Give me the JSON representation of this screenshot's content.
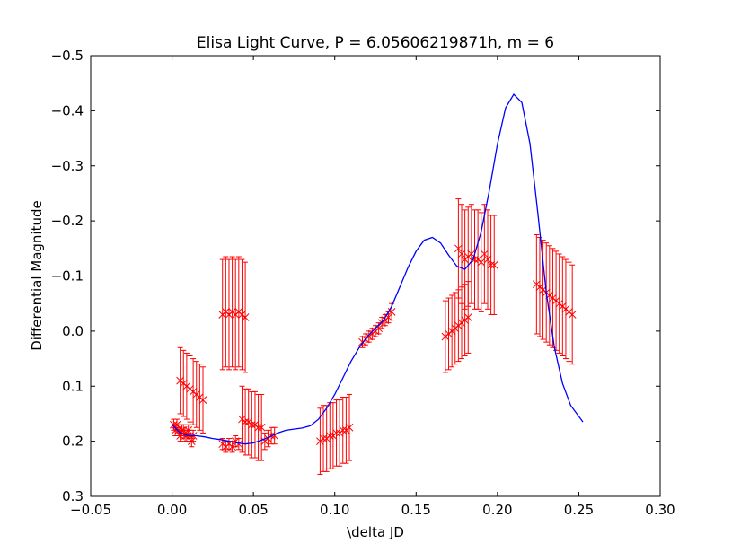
{
  "chart_data": {
    "type": "scatter",
    "title": "Elisa Light Curve,  P = 6.05606219871h, m = 6",
    "xlabel": "\\delta JD",
    "ylabel": "Differential Magnitude",
    "xlim": [
      -0.05,
      0.3
    ],
    "ylim": [
      0.3,
      -0.5
    ],
    "y_inverted": true,
    "grid": false,
    "x_ticks": [
      -0.05,
      0.0,
      0.05,
      0.1,
      0.15,
      0.2,
      0.25,
      0.3
    ],
    "x_tick_labels": [
      "−0.05",
      "0.00",
      "0.05",
      "0.10",
      "0.15",
      "0.20",
      "0.25",
      "0.30"
    ],
    "y_ticks": [
      -0.5,
      -0.4,
      -0.3,
      -0.2,
      -0.1,
      0.0,
      0.1,
      0.2,
      0.3
    ],
    "y_tick_labels": [
      "−0.5",
      "−0.4",
      "−0.3",
      "−0.2",
      "−0.1",
      "0.0",
      "0.1",
      "0.2",
      "0.3"
    ],
    "colors": {
      "data": "#ff0000",
      "fit": "#0000ff"
    },
    "series": [
      {
        "kind": "errorbar",
        "marker": "x",
        "points": [
          {
            "x": 0.001,
            "y": 0.17,
            "err": 0.01
          },
          {
            "x": 0.002,
            "y": 0.18,
            "err": 0.01
          },
          {
            "x": 0.003,
            "y": 0.17,
            "err": 0.01
          },
          {
            "x": 0.004,
            "y": 0.18,
            "err": 0.01
          },
          {
            "x": 0.005,
            "y": 0.19,
            "err": 0.01
          },
          {
            "x": 0.006,
            "y": 0.18,
            "err": 0.01
          },
          {
            "x": 0.007,
            "y": 0.18,
            "err": 0.01
          },
          {
            "x": 0.008,
            "y": 0.19,
            "err": 0.01
          },
          {
            "x": 0.009,
            "y": 0.19,
            "err": 0.01
          },
          {
            "x": 0.01,
            "y": 0.18,
            "err": 0.01
          },
          {
            "x": 0.011,
            "y": 0.19,
            "err": 0.01
          },
          {
            "x": 0.012,
            "y": 0.2,
            "err": 0.01
          },
          {
            "x": 0.013,
            "y": 0.19,
            "err": 0.01
          },
          {
            "x": 0.005,
            "y": 0.09,
            "err": 0.06
          },
          {
            "x": 0.007,
            "y": 0.095,
            "err": 0.06
          },
          {
            "x": 0.009,
            "y": 0.1,
            "err": 0.06
          },
          {
            "x": 0.011,
            "y": 0.105,
            "err": 0.06
          },
          {
            "x": 0.013,
            "y": 0.11,
            "err": 0.06
          },
          {
            "x": 0.015,
            "y": 0.115,
            "err": 0.06
          },
          {
            "x": 0.017,
            "y": 0.12,
            "err": 0.06
          },
          {
            "x": 0.019,
            "y": 0.125,
            "err": 0.06
          },
          {
            "x": 0.031,
            "y": -0.03,
            "err": 0.1
          },
          {
            "x": 0.033,
            "y": -0.035,
            "err": 0.1
          },
          {
            "x": 0.035,
            "y": -0.03,
            "err": 0.1
          },
          {
            "x": 0.037,
            "y": -0.035,
            "err": 0.1
          },
          {
            "x": 0.039,
            "y": -0.03,
            "err": 0.1
          },
          {
            "x": 0.041,
            "y": -0.035,
            "err": 0.1
          },
          {
            "x": 0.043,
            "y": -0.03,
            "err": 0.1
          },
          {
            "x": 0.045,
            "y": -0.025,
            "err": 0.1
          },
          {
            "x": 0.031,
            "y": 0.205,
            "err": 0.01
          },
          {
            "x": 0.033,
            "y": 0.21,
            "err": 0.01
          },
          {
            "x": 0.035,
            "y": 0.205,
            "err": 0.01
          },
          {
            "x": 0.037,
            "y": 0.21,
            "err": 0.01
          },
          {
            "x": 0.039,
            "y": 0.2,
            "err": 0.01
          },
          {
            "x": 0.041,
            "y": 0.205,
            "err": 0.01
          },
          {
            "x": 0.043,
            "y": 0.16,
            "err": 0.06
          },
          {
            "x": 0.045,
            "y": 0.165,
            "err": 0.06
          },
          {
            "x": 0.047,
            "y": 0.165,
            "err": 0.06
          },
          {
            "x": 0.049,
            "y": 0.17,
            "err": 0.06
          },
          {
            "x": 0.051,
            "y": 0.17,
            "err": 0.06
          },
          {
            "x": 0.053,
            "y": 0.175,
            "err": 0.06
          },
          {
            "x": 0.055,
            "y": 0.175,
            "err": 0.06
          },
          {
            "x": 0.057,
            "y": 0.2,
            "err": 0.015
          },
          {
            "x": 0.059,
            "y": 0.195,
            "err": 0.015
          },
          {
            "x": 0.061,
            "y": 0.19,
            "err": 0.015
          },
          {
            "x": 0.063,
            "y": 0.19,
            "err": 0.015
          },
          {
            "x": 0.091,
            "y": 0.2,
            "err": 0.06
          },
          {
            "x": 0.093,
            "y": 0.195,
            "err": 0.06
          },
          {
            "x": 0.095,
            "y": 0.195,
            "err": 0.06
          },
          {
            "x": 0.097,
            "y": 0.19,
            "err": 0.06
          },
          {
            "x": 0.099,
            "y": 0.19,
            "err": 0.06
          },
          {
            "x": 0.101,
            "y": 0.185,
            "err": 0.06
          },
          {
            "x": 0.103,
            "y": 0.185,
            "err": 0.06
          },
          {
            "x": 0.105,
            "y": 0.18,
            "err": 0.06
          },
          {
            "x": 0.107,
            "y": 0.18,
            "err": 0.06
          },
          {
            "x": 0.109,
            "y": 0.175,
            "err": 0.06
          },
          {
            "x": 0.117,
            "y": 0.02,
            "err": 0.01
          },
          {
            "x": 0.119,
            "y": 0.015,
            "err": 0.01
          },
          {
            "x": 0.121,
            "y": 0.01,
            "err": 0.01
          },
          {
            "x": 0.123,
            "y": 0.005,
            "err": 0.01
          },
          {
            "x": 0.125,
            "y": 0.0,
            "err": 0.01
          },
          {
            "x": 0.127,
            "y": -0.005,
            "err": 0.01
          },
          {
            "x": 0.129,
            "y": -0.015,
            "err": 0.01
          },
          {
            "x": 0.131,
            "y": -0.02,
            "err": 0.01
          },
          {
            "x": 0.133,
            "y": -0.025,
            "err": 0.01
          },
          {
            "x": 0.135,
            "y": -0.035,
            "err": 0.015
          },
          {
            "x": 0.168,
            "y": 0.01,
            "err": 0.065
          },
          {
            "x": 0.17,
            "y": 0.005,
            "err": 0.065
          },
          {
            "x": 0.172,
            "y": 0.0,
            "err": 0.065
          },
          {
            "x": 0.174,
            "y": -0.005,
            "err": 0.065
          },
          {
            "x": 0.176,
            "y": -0.01,
            "err": 0.065
          },
          {
            "x": 0.178,
            "y": -0.015,
            "err": 0.065
          },
          {
            "x": 0.18,
            "y": -0.02,
            "err": 0.065
          },
          {
            "x": 0.182,
            "y": -0.025,
            "err": 0.065
          },
          {
            "x": 0.176,
            "y": -0.15,
            "err": 0.09
          },
          {
            "x": 0.178,
            "y": -0.14,
            "err": 0.09
          },
          {
            "x": 0.18,
            "y": -0.13,
            "err": 0.09
          },
          {
            "x": 0.182,
            "y": -0.135,
            "err": 0.09
          },
          {
            "x": 0.184,
            "y": -0.14,
            "err": 0.09
          },
          {
            "x": 0.186,
            "y": -0.13,
            "err": 0.09
          },
          {
            "x": 0.188,
            "y": -0.13,
            "err": 0.09
          },
          {
            "x": 0.19,
            "y": -0.125,
            "err": 0.09
          },
          {
            "x": 0.192,
            "y": -0.14,
            "err": 0.09
          },
          {
            "x": 0.194,
            "y": -0.13,
            "err": 0.09
          },
          {
            "x": 0.196,
            "y": -0.12,
            "err": 0.09
          },
          {
            "x": 0.198,
            "y": -0.12,
            "err": 0.09
          },
          {
            "x": 0.224,
            "y": -0.085,
            "err": 0.09
          },
          {
            "x": 0.226,
            "y": -0.08,
            "err": 0.09
          },
          {
            "x": 0.228,
            "y": -0.075,
            "err": 0.09
          },
          {
            "x": 0.23,
            "y": -0.07,
            "err": 0.09
          },
          {
            "x": 0.232,
            "y": -0.065,
            "err": 0.09
          },
          {
            "x": 0.234,
            "y": -0.06,
            "err": 0.09
          },
          {
            "x": 0.236,
            "y": -0.055,
            "err": 0.09
          },
          {
            "x": 0.238,
            "y": -0.05,
            "err": 0.09
          },
          {
            "x": 0.24,
            "y": -0.045,
            "err": 0.09
          },
          {
            "x": 0.242,
            "y": -0.04,
            "err": 0.09
          },
          {
            "x": 0.244,
            "y": -0.035,
            "err": 0.09
          },
          {
            "x": 0.246,
            "y": -0.03,
            "err": 0.09
          }
        ]
      },
      {
        "kind": "line",
        "points": [
          {
            "x": 0.0,
            "y": 0.17
          },
          {
            "x": 0.005,
            "y": 0.185
          },
          {
            "x": 0.01,
            "y": 0.19
          },
          {
            "x": 0.015,
            "y": 0.19
          },
          {
            "x": 0.02,
            "y": 0.192
          },
          {
            "x": 0.025,
            "y": 0.195
          },
          {
            "x": 0.03,
            "y": 0.197
          },
          {
            "x": 0.035,
            "y": 0.2
          },
          {
            "x": 0.04,
            "y": 0.203
          },
          {
            "x": 0.045,
            "y": 0.205
          },
          {
            "x": 0.05,
            "y": 0.203
          },
          {
            "x": 0.055,
            "y": 0.198
          },
          {
            "x": 0.06,
            "y": 0.192
          },
          {
            "x": 0.065,
            "y": 0.185
          },
          {
            "x": 0.07,
            "y": 0.18
          },
          {
            "x": 0.075,
            "y": 0.178
          },
          {
            "x": 0.08,
            "y": 0.176
          },
          {
            "x": 0.085,
            "y": 0.172
          },
          {
            "x": 0.09,
            "y": 0.16
          },
          {
            "x": 0.095,
            "y": 0.14
          },
          {
            "x": 0.1,
            "y": 0.115
          },
          {
            "x": 0.105,
            "y": 0.085
          },
          {
            "x": 0.11,
            "y": 0.055
          },
          {
            "x": 0.115,
            "y": 0.03
          },
          {
            "x": 0.12,
            "y": 0.01
          },
          {
            "x": 0.125,
            "y": -0.005
          },
          {
            "x": 0.13,
            "y": -0.02
          },
          {
            "x": 0.135,
            "y": -0.045
          },
          {
            "x": 0.14,
            "y": -0.08
          },
          {
            "x": 0.145,
            "y": -0.115
          },
          {
            "x": 0.15,
            "y": -0.145
          },
          {
            "x": 0.155,
            "y": -0.165
          },
          {
            "x": 0.16,
            "y": -0.17
          },
          {
            "x": 0.165,
            "y": -0.16
          },
          {
            "x": 0.17,
            "y": -0.138
          },
          {
            "x": 0.175,
            "y": -0.118
          },
          {
            "x": 0.18,
            "y": -0.112
          },
          {
            "x": 0.185,
            "y": -0.13
          },
          {
            "x": 0.19,
            "y": -0.18
          },
          {
            "x": 0.195,
            "y": -0.255
          },
          {
            "x": 0.2,
            "y": -0.34
          },
          {
            "x": 0.205,
            "y": -0.405
          },
          {
            "x": 0.21,
            "y": -0.43
          },
          {
            "x": 0.215,
            "y": -0.415
          },
          {
            "x": 0.22,
            "y": -0.34
          },
          {
            "x": 0.225,
            "y": -0.21
          },
          {
            "x": 0.23,
            "y": -0.07
          },
          {
            "x": 0.235,
            "y": 0.03
          },
          {
            "x": 0.24,
            "y": 0.095
          },
          {
            "x": 0.245,
            "y": 0.135
          },
          {
            "x": 0.2525,
            "y": 0.165
          }
        ]
      }
    ]
  }
}
